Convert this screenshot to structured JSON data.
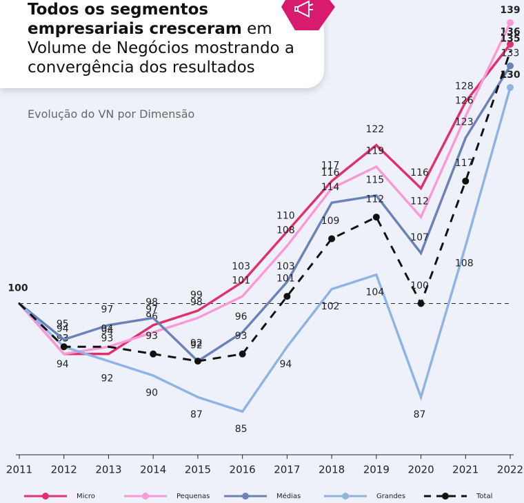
{
  "chart_data": {
    "type": "line",
    "title_bold": "Todos os segmentos empresariais cresceram",
    "title_rest": "em Volume de Negócios mostrando a convergência dos resultados",
    "subtitle": "Evolução do VN por Dimensão",
    "categories": [
      "2011",
      "2012",
      "2013",
      "2014",
      "2015",
      "2016",
      "2017",
      "2018",
      "2019",
      "2020",
      "2021",
      "2022"
    ],
    "ylim": [
      79,
      141
    ],
    "reference_line": 100,
    "series": [
      {
        "name": "Micro",
        "color": "#e0306e",
        "dashed": false,
        "values": [
          100,
          93,
          93,
          97,
          99,
          103,
          110,
          117,
          122,
          116,
          128,
          136
        ]
      },
      {
        "name": "Pequenas",
        "color": "#f99ad6",
        "dashed": false,
        "values": [
          100,
          93,
          94,
          96,
          98,
          101,
          108,
          116,
          119,
          112,
          126,
          139
        ]
      },
      {
        "name": "Médias",
        "color": "#6a82b8",
        "dashed": false,
        "values": [
          100,
          95,
          97,
          98,
          92,
          96,
          103,
          114,
          115,
          107,
          123,
          133
        ]
      },
      {
        "name": "Grandes",
        "color": "#8fb3e4",
        "dashed": false,
        "values": [
          100,
          94,
          92,
          90,
          87,
          85,
          94,
          102,
          104,
          87,
          108,
          130
        ]
      },
      {
        "name": "Total",
        "color": "#111111",
        "dashed": true,
        "values": [
          100,
          94,
          94,
          93,
          92,
          93,
          101,
          109,
          112,
          100,
          117,
          135
        ]
      }
    ]
  }
}
